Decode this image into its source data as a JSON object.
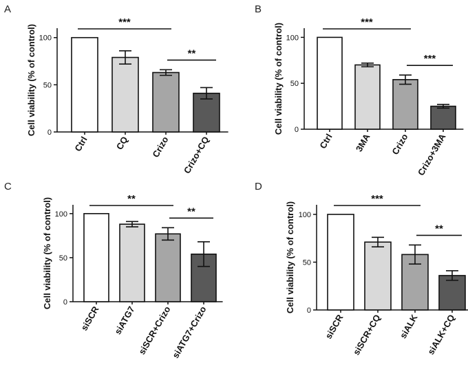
{
  "chart_data": [
    {
      "panel": "A",
      "type": "bar",
      "ylabel": "Cell viability (% of control)",
      "yticks": [
        0,
        50,
        100
      ],
      "ylim": [
        0,
        110
      ],
      "categories": [
        "Ctrl",
        "CQ",
        "Crizo",
        "Crizo+CQ"
      ],
      "values": [
        100,
        79,
        63,
        41
      ],
      "errors": [
        0,
        7,
        3,
        6
      ],
      "colors": [
        "#ffffff",
        "#d9d9d9",
        "#a6a6a6",
        "#595959"
      ],
      "brackets": [
        {
          "from": 0,
          "to": 2,
          "label": "***"
        },
        {
          "from": 2,
          "to": 3,
          "label": "**"
        }
      ]
    },
    {
      "panel": "B",
      "type": "bar",
      "ylabel": "Cell viability (% of control)",
      "yticks": [
        0,
        50,
        100
      ],
      "ylim": [
        0,
        110
      ],
      "categories": [
        "Ctrl",
        "3MA",
        "Crizo",
        "Crizo+3MA"
      ],
      "values": [
        100,
        70,
        54,
        25
      ],
      "errors": [
        0,
        2,
        5,
        2
      ],
      "colors": [
        "#ffffff",
        "#d9d9d9",
        "#a6a6a6",
        "#595959"
      ],
      "brackets": [
        {
          "from": 0,
          "to": 2,
          "label": "***"
        },
        {
          "from": 2,
          "to": 3,
          "label": "***"
        }
      ]
    },
    {
      "panel": "C",
      "type": "bar",
      "ylabel": "Cell viability (% of control)",
      "yticks": [
        0,
        50,
        100
      ],
      "ylim": [
        0,
        110
      ],
      "categories": [
        "siSCR",
        "siATG7",
        "siSCR+Crizo",
        "siATG7+Crizo"
      ],
      "values": [
        100,
        88,
        77,
        54
      ],
      "errors": [
        0,
        3,
        7,
        14
      ],
      "colors": [
        "#ffffff",
        "#d9d9d9",
        "#a6a6a6",
        "#595959"
      ],
      "brackets": [
        {
          "from": 0,
          "to": 2,
          "label": "**"
        },
        {
          "from": 2,
          "to": 3,
          "label": "**"
        }
      ]
    },
    {
      "panel": "D",
      "type": "bar",
      "ylabel": "Cell viability (% of control)",
      "yticks": [
        0,
        50,
        100
      ],
      "ylim": [
        0,
        110
      ],
      "categories": [
        "siSCR",
        "siSCR+CQ",
        "siALK",
        "siALK+CQ"
      ],
      "values": [
        100,
        71,
        58,
        36
      ],
      "errors": [
        0,
        5,
        10,
        5
      ],
      "colors": [
        "#ffffff",
        "#d9d9d9",
        "#a6a6a6",
        "#595959"
      ],
      "brackets": [
        {
          "from": 0,
          "to": 2,
          "label": "***"
        },
        {
          "from": 2,
          "to": 3,
          "label": "**"
        }
      ]
    }
  ]
}
